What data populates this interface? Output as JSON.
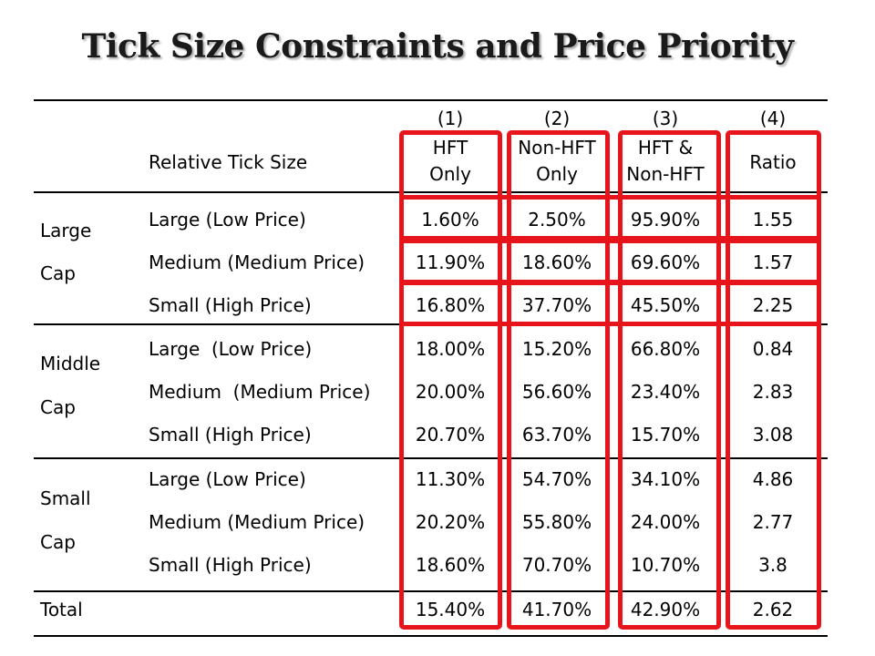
{
  "title": "Tick Size Constraints and Price Priority",
  "table": {
    "col_numbers": [
      "(1)",
      "(2)",
      "(3)",
      "(4)"
    ],
    "header_label": "Relative Tick Size",
    "col_headers": [
      [
        "HFT",
        "Only"
      ],
      [
        "Non-HFT",
        "Only"
      ],
      [
        "HFT &",
        "Non-HFT"
      ],
      [
        "Ratio"
      ]
    ],
    "groups": [
      {
        "label": [
          "Large",
          "Cap"
        ],
        "rows": [
          {
            "tick": "Large (Low Price)",
            "values": [
              "1.60%",
              "2.50%",
              "95.90%",
              "1.55"
            ]
          },
          {
            "tick": "Medium (Medium Price)",
            "values": [
              "11.90%",
              "18.60%",
              "69.60%",
              "1.57"
            ]
          },
          {
            "tick": "Small (High Price)",
            "values": [
              "16.80%",
              "37.70%",
              "45.50%",
              "2.25"
            ]
          }
        ]
      },
      {
        "label": [
          "Middle",
          "Cap"
        ],
        "rows": [
          {
            "tick": "Large  (Low Price)",
            "values": [
              "18.00%",
              "15.20%",
              "66.80%",
              "0.84"
            ]
          },
          {
            "tick": "Medium  (Medium Price)",
            "values": [
              "20.00%",
              "56.60%",
              "23.40%",
              "2.83"
            ]
          },
          {
            "tick": "Small (High Price)",
            "values": [
              "20.70%",
              "63.70%",
              "15.70%",
              "3.08"
            ]
          }
        ]
      },
      {
        "label": [
          "Small",
          "Cap"
        ],
        "rows": [
          {
            "tick": "Large (Low Price)",
            "values": [
              "11.30%",
              "54.70%",
              "34.10%",
              "4.86"
            ]
          },
          {
            "tick": "Medium (Medium Price)",
            "values": [
              "20.20%",
              "55.80%",
              "24.00%",
              "2.77"
            ]
          },
          {
            "tick": "Small (High Price)",
            "values": [
              "18.60%",
              "70.70%",
              "10.70%",
              "3.8"
            ]
          }
        ]
      }
    ],
    "total": {
      "label": "Total",
      "values": [
        "15.40%",
        "41.70%",
        "42.90%",
        "2.62"
      ]
    }
  },
  "colors": {
    "highlight": "#e8141b",
    "rule": "#000000"
  }
}
